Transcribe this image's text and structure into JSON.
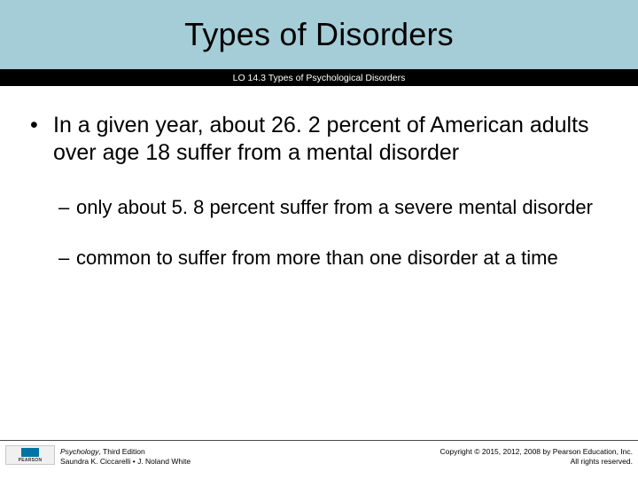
{
  "colors": {
    "titleBand": "#a4cdd7",
    "subtitleBand": "#000000",
    "titleText": "#000000",
    "subtitleText": "#ffffff",
    "bodyText": "#000000",
    "footerRule": "#4a4a4a",
    "logoAccent": "#0073a5"
  },
  "header": {
    "title": "Types of Disorders",
    "subtitle": "LO 14.3 Types of Psychological Disorders"
  },
  "bullets": {
    "l1_marker": "•",
    "l2_marker": "–",
    "main": "In a given year, about 26. 2 percent of American adults over age 18 suffer from a mental disorder",
    "sub1": "only about 5. 8 percent suffer from a severe mental disorder",
    "sub2": "common to suffer from more than one disorder at a time"
  },
  "footer": {
    "logoText": "PEARSON",
    "bookTitle": "Psychology",
    "bookEdition": ", Third Edition",
    "authors": "Saundra K. Ciccarelli • J. Noland White",
    "copyrightLine1": "Copyright © 2015, 2012, 2008 by Pearson Education, Inc.",
    "copyrightLine2": "All rights reserved."
  }
}
